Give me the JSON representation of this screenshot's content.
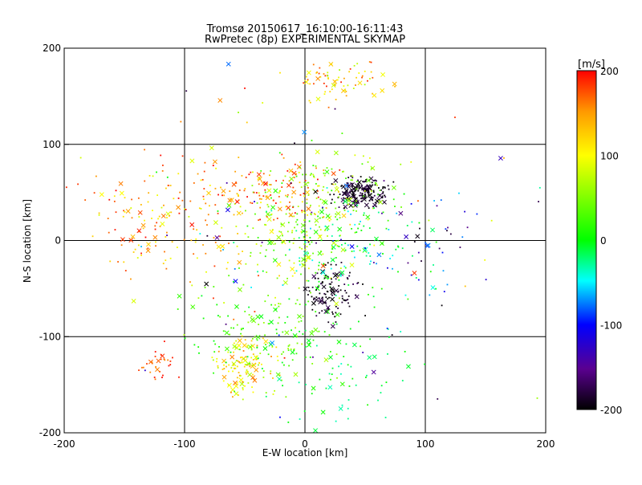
{
  "chart_data": {
    "type": "scatter",
    "title": "Tromsø 20150617_16:10:00-16:11:43",
    "subtitle": "RwPretec (8p) EXPERIMENTAL SKYMAP",
    "xlabel": "E-W location [km]",
    "ylabel": "N-S location [km]",
    "xlim": [
      -200,
      200
    ],
    "ylim": [
      -200,
      200
    ],
    "xticks": [
      "-200",
      "-100",
      "0",
      "100",
      "200"
    ],
    "yticks": [
      "-200",
      "-100",
      "0",
      "100",
      "200"
    ],
    "grid": true,
    "colorbar": {
      "label": "[m/s]",
      "range": [
        -200,
        200
      ],
      "ticks": [
        "200",
        "100",
        "0",
        "-100",
        "-200"
      ]
    },
    "clusters": [
      {
        "region": "south-west",
        "cx": -50,
        "cy": -130,
        "sx": 12,
        "sy": 15,
        "n": 120,
        "vmin": 60,
        "vmax": 160
      },
      {
        "region": "south-west-left",
        "cx": -122,
        "cy": -130,
        "sx": 8,
        "sy": 10,
        "n": 30,
        "vmin": 150,
        "vmax": 200
      },
      {
        "region": "south-central",
        "cx": -25,
        "cy": -95,
        "sx": 30,
        "sy": 25,
        "n": 160,
        "vmin": -10,
        "vmax": 70
      },
      {
        "region": "center",
        "cx": -5,
        "cy": 10,
        "sx": 25,
        "sy": 30,
        "n": 200,
        "vmin": 10,
        "vmax": 110
      },
      {
        "region": "west",
        "cx": -110,
        "cy": 20,
        "sx": 35,
        "sy": 30,
        "n": 160,
        "vmin": 80,
        "vmax": 200
      },
      {
        "region": "north-central",
        "cx": -25,
        "cy": 50,
        "sx": 30,
        "sy": 15,
        "n": 110,
        "vmin": 120,
        "vmax": 200
      },
      {
        "region": "north-east-dense",
        "cx": 47,
        "cy": 50,
        "sx": 12,
        "sy": 7,
        "n": 180,
        "vmin": -210,
        "vmax": -170
      },
      {
        "region": "north-east-halo",
        "cx": 35,
        "cy": 55,
        "sx": 25,
        "sy": 15,
        "n": 70,
        "vmin": 20,
        "vmax": 90
      },
      {
        "region": "east-south",
        "cx": 23,
        "cy": -55,
        "sx": 10,
        "sy": 14,
        "n": 110,
        "vmin": -210,
        "vmax": -170
      },
      {
        "region": "east",
        "cx": 40,
        "cy": -5,
        "sx": 30,
        "sy": 25,
        "n": 110,
        "vmin": -60,
        "vmax": 20
      },
      {
        "region": "east-far",
        "cx": 100,
        "cy": 0,
        "sx": 25,
        "sy": 35,
        "n": 40,
        "vmin": -200,
        "vmax": -60
      },
      {
        "region": "north-top",
        "cx": 25,
        "cy": 165,
        "sx": 20,
        "sy": 10,
        "n": 75,
        "vmin": 60,
        "vmax": 190
      },
      {
        "region": "south-east",
        "cx": 35,
        "cy": -140,
        "sx": 25,
        "sy": 25,
        "n": 55,
        "vmin": -40,
        "vmax": 20
      },
      {
        "region": "scattered",
        "cx": 0,
        "cy": 0,
        "sx": 85,
        "sy": 85,
        "n": 130,
        "vmin": -200,
        "vmax": 200
      }
    ]
  }
}
